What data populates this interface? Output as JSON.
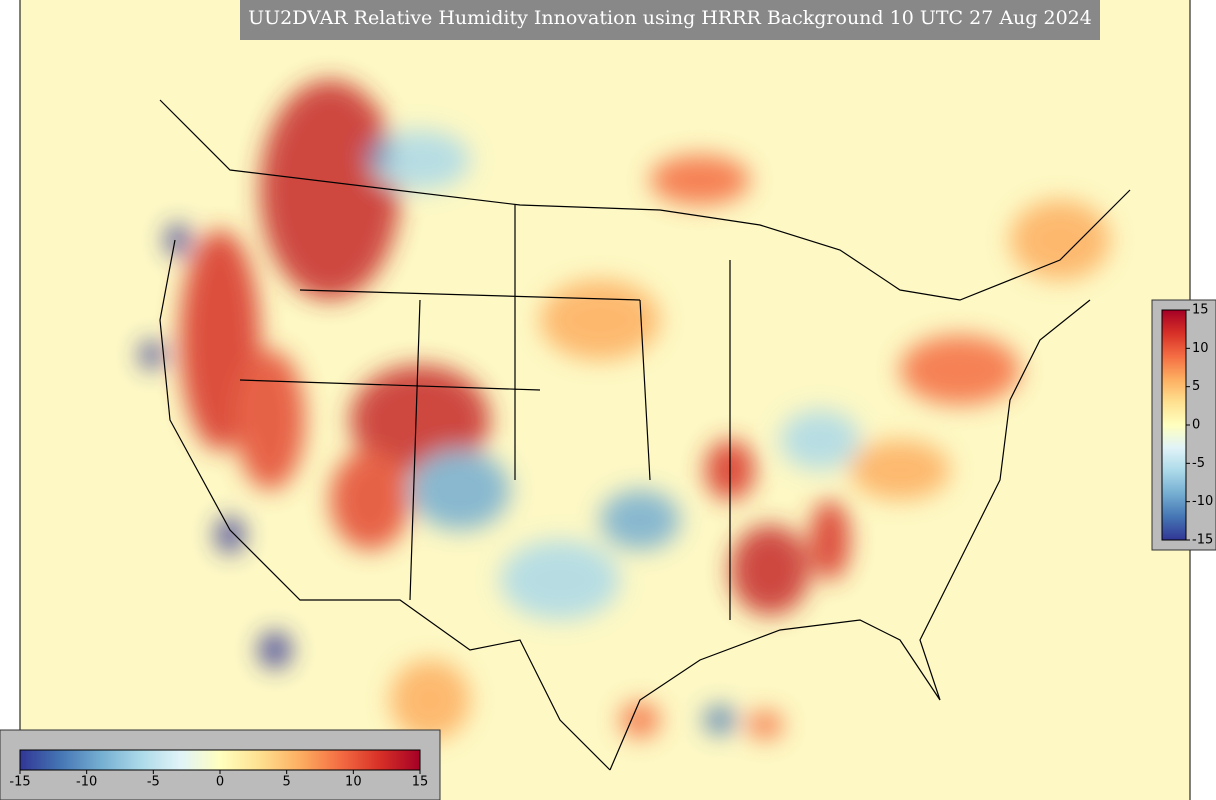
{
  "title": "UU2DVAR Relative Humidity Innovation using HRRR Background 10 UTC 27 Aug 2024",
  "colorbar": {
    "lim": [
      -15,
      15
    ],
    "ticks": [
      -15,
      -10,
      -5,
      0,
      5,
      10,
      15
    ]
  }
}
